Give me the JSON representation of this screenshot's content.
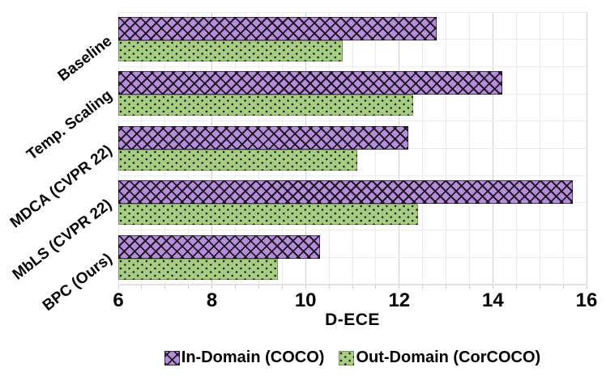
{
  "chart_data": {
    "type": "bar",
    "orientation": "horizontal",
    "title": "",
    "xlabel": "D-ECE",
    "ylabel": "",
    "xlim": [
      6,
      16
    ],
    "xticks": [
      6,
      8,
      10,
      12,
      14,
      16
    ],
    "minor_tick_step": 0.5,
    "grid": "on",
    "legend_position": "bottom",
    "categories": [
      "Baseline",
      "Temp. Scaling",
      "MDCA (CVPR 22)",
      "MbLS (CVPR 22)",
      "BPC (Ours)"
    ],
    "series": [
      {
        "name": "In-Domain (COCO)",
        "color": "#b48fd8",
        "hatch": "crosshatch",
        "values": [
          12.8,
          14.2,
          12.2,
          15.7,
          10.3
        ]
      },
      {
        "name": "Out-Domain (CorCOCO)",
        "color": "#a6cd82",
        "hatch": "dots",
        "values": [
          10.8,
          12.3,
          11.1,
          12.4,
          9.4
        ]
      }
    ],
    "hatch_color": "#000000"
  }
}
